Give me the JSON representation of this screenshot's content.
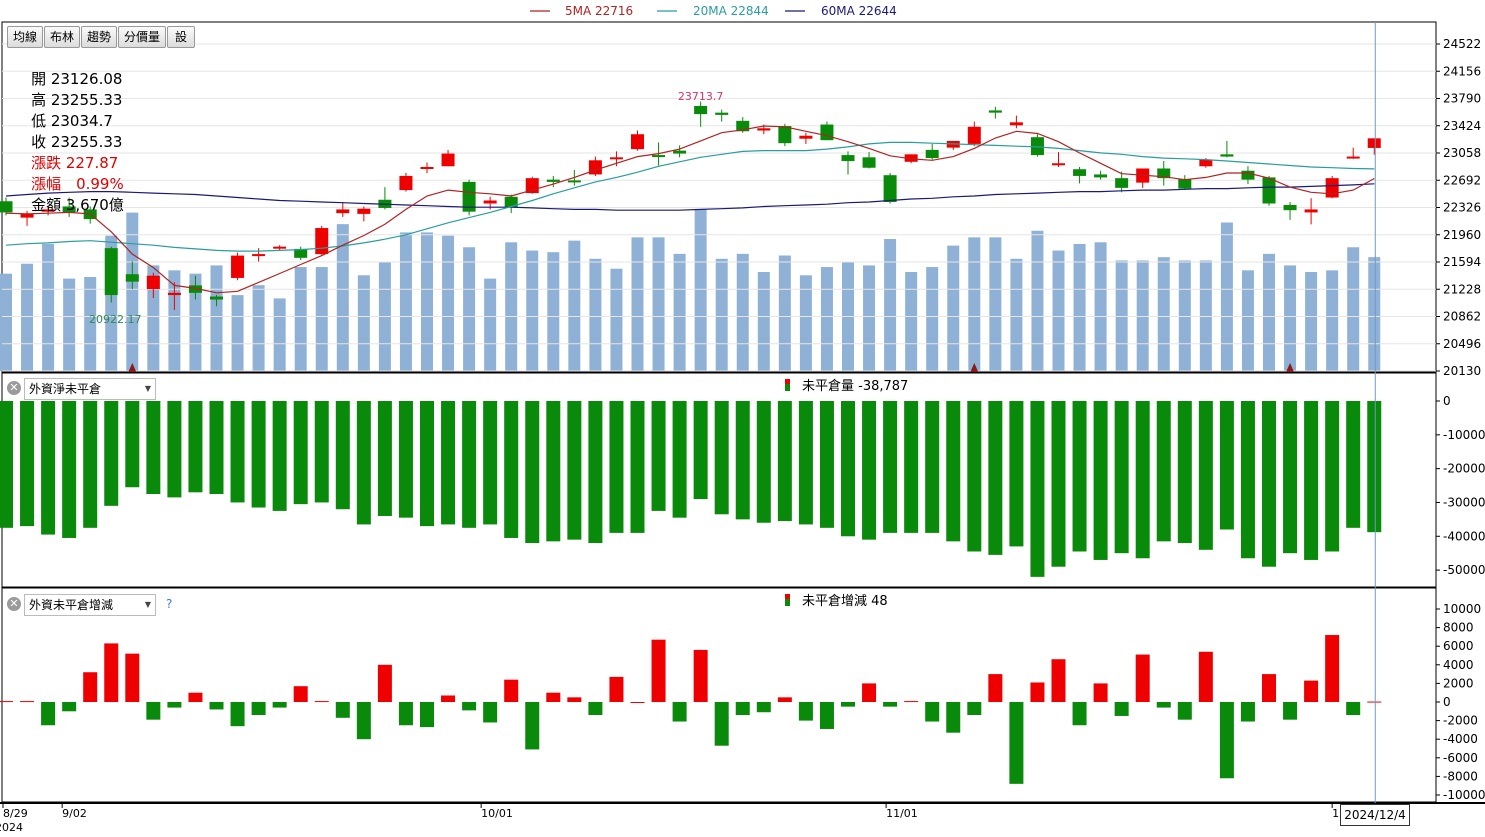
{
  "legend": {
    "ma5": "5MA 22716",
    "ma20": "20MA 22844",
    "ma60": "60MA 22644"
  },
  "tabs": [
    "均線",
    "布林",
    "趨勢",
    "分價量",
    "設"
  ],
  "info": {
    "open": "開 23126.08",
    "high": "高 23255.33",
    "low": "低 23034.7",
    "close": "收 23255.33",
    "change": "漲跌 227.87",
    "pct": "漲幅　0.99%",
    "amount": "金額 3,670億"
  },
  "annotations": {
    "high_label": "23713.7",
    "low_label": "20922.17"
  },
  "panel2": {
    "select": "外資淨未平倉",
    "legend": "未平倉量 -38,787"
  },
  "panel3": {
    "select": "外資未平倉增減",
    "legend": "未平倉增減 48",
    "help": "?"
  },
  "xaxis": {
    "labels": [
      "8/29",
      "9/02",
      "10/01",
      "11/01",
      "12/"
    ],
    "year": "2024",
    "cursor_date": "2024/12/4"
  },
  "colors": {
    "up": "#ee0000",
    "down": "#0a8a0a",
    "volume": "#8fb1d6",
    "ma5": "#b22222",
    "ma20": "#2a9d9d",
    "ma60": "#1a1a7a",
    "cursor": "#6a9ac8"
  },
  "chart_data": [
    {
      "type": "candlestick",
      "price_ticks": [
        24522,
        24156,
        23790,
        23424,
        23058,
        22692,
        22326,
        21960,
        21594,
        21228,
        20862,
        20496,
        20130
      ],
      "ylim": [
        20130,
        24522
      ],
      "ohlc": [
        [
          22410,
          22460,
          22220,
          22260
        ],
        [
          22190,
          22280,
          22080,
          22240
        ],
        [
          22270,
          22330,
          22220,
          22300
        ],
        [
          22340,
          22460,
          22200,
          22260
        ],
        [
          22300,
          22340,
          22110,
          22170
        ],
        [
          21780,
          21800,
          21050,
          21150
        ],
        [
          21430,
          21600,
          21230,
          21330
        ],
        [
          21230,
          21450,
          21110,
          21410
        ],
        [
          21150,
          21320,
          20950,
          21180
        ],
        [
          21280,
          21410,
          21090,
          21180
        ],
        [
          21130,
          21150,
          21000,
          21090
        ],
        [
          21380,
          21720,
          21350,
          21680
        ],
        [
          21700,
          21780,
          21600,
          21700
        ],
        [
          21790,
          21820,
          21750,
          21800
        ],
        [
          21770,
          21800,
          21620,
          21650
        ],
        [
          21700,
          22080,
          21690,
          22050
        ],
        [
          22250,
          22400,
          22200,
          22300
        ],
        [
          22240,
          22340,
          22140,
          22310
        ],
        [
          22430,
          22600,
          22300,
          22320
        ],
        [
          22560,
          22790,
          22540,
          22750
        ],
        [
          22860,
          22930,
          22790,
          22870
        ],
        [
          22880,
          23100,
          22880,
          23050
        ],
        [
          22670,
          22700,
          22220,
          22270
        ],
        [
          22380,
          22470,
          22300,
          22420
        ],
        [
          22470,
          22500,
          22250,
          22330
        ],
        [
          22520,
          22740,
          22510,
          22720
        ],
        [
          22700,
          22750,
          22600,
          22670
        ],
        [
          22690,
          22830,
          22620,
          22680
        ],
        [
          22770,
          23010,
          22750,
          22960
        ],
        [
          22990,
          23080,
          22880,
          23000
        ],
        [
          23110,
          23360,
          23090,
          23310
        ],
        [
          23030,
          23200,
          22890,
          23020
        ],
        [
          23090,
          23160,
          23000,
          23050
        ],
        [
          23690,
          23750,
          23410,
          23580
        ],
        [
          23600,
          23640,
          23480,
          23570
        ],
        [
          23490,
          23540,
          23330,
          23350
        ],
        [
          23360,
          23440,
          23310,
          23390
        ],
        [
          23420,
          23450,
          23150,
          23190
        ],
        [
          23250,
          23330,
          23180,
          23290
        ],
        [
          23440,
          23480,
          23230,
          23230
        ],
        [
          23030,
          23080,
          22770,
          22950
        ],
        [
          23000,
          23070,
          22850,
          22860
        ],
        [
          22760,
          22790,
          22380,
          22400
        ],
        [
          22940,
          23040,
          22920,
          23040
        ],
        [
          23100,
          23180,
          22970,
          22990
        ],
        [
          23130,
          23220,
          23100,
          23220
        ],
        [
          23180,
          23480,
          23150,
          23410
        ],
        [
          23630,
          23680,
          23520,
          23600
        ],
        [
          23430,
          23560,
          23390,
          23470
        ],
        [
          23270,
          23310,
          23010,
          23030
        ],
        [
          22900,
          23070,
          22870,
          22920
        ],
        [
          22840,
          22870,
          22650,
          22750
        ],
        [
          22770,
          22820,
          22700,
          22730
        ],
        [
          22720,
          22810,
          22530,
          22590
        ],
        [
          22660,
          22850,
          22590,
          22850
        ],
        [
          22850,
          22950,
          22620,
          22720
        ],
        [
          22710,
          22760,
          22560,
          22580
        ],
        [
          22880,
          22990,
          22860,
          22970
        ],
        [
          23040,
          23220,
          23000,
          23010
        ],
        [
          22820,
          22880,
          22640,
          22700
        ],
        [
          22730,
          22750,
          22350,
          22380
        ],
        [
          22360,
          22400,
          22160,
          22290
        ],
        [
          22260,
          22450,
          22100,
          22300
        ],
        [
          22460,
          22750,
          22450,
          22720
        ],
        [
          22990,
          23130,
          22980,
          23010
        ],
        [
          23126,
          23255,
          23035,
          23255
        ]
      ],
      "ma5": [
        22250,
        22240,
        22250,
        22260,
        22240,
        22000,
        21700,
        21520,
        21280,
        21240,
        21180,
        21200,
        21320,
        21440,
        21560,
        21680,
        21820,
        21950,
        22100,
        22300,
        22480,
        22560,
        22530,
        22510,
        22480,
        22560,
        22640,
        22730,
        22830,
        22920,
        23010,
        23050,
        23110,
        23220,
        23330,
        23370,
        23420,
        23410,
        23350,
        23290,
        23210,
        23120,
        23020,
        22980,
        22960,
        23010,
        23120,
        23260,
        23350,
        23320,
        23210,
        23060,
        22920,
        22780,
        22760,
        22740,
        22700,
        22730,
        22790,
        22790,
        22720,
        22600,
        22530,
        22510,
        22560,
        22716
      ],
      "ma20": [
        21820,
        21840,
        21850,
        21870,
        21880,
        21860,
        21840,
        21820,
        21790,
        21770,
        21750,
        21740,
        21740,
        21750,
        21760,
        21780,
        21810,
        21850,
        21900,
        21960,
        22040,
        22120,
        22190,
        22260,
        22340,
        22420,
        22510,
        22590,
        22670,
        22730,
        22800,
        22880,
        22940,
        23000,
        23040,
        23080,
        23090,
        23090,
        23090,
        23110,
        23140,
        23180,
        23200,
        23200,
        23190,
        23180,
        23170,
        23160,
        23150,
        23140,
        23120,
        23090,
        23060,
        23040,
        23010,
        22990,
        22980,
        22970,
        22950,
        22930,
        22910,
        22890,
        22870,
        22860,
        22850,
        22844
      ],
      "ma60": [
        22480,
        22500,
        22520,
        22530,
        22540,
        22540,
        22530,
        22520,
        22510,
        22500,
        22480,
        22460,
        22440,
        22420,
        22410,
        22400,
        22390,
        22380,
        22370,
        22360,
        22350,
        22340,
        22330,
        22330,
        22330,
        22320,
        22310,
        22300,
        22300,
        22290,
        22290,
        22290,
        22290,
        22300,
        22310,
        22320,
        22340,
        22350,
        22360,
        22370,
        22390,
        22400,
        22420,
        22440,
        22450,
        22470,
        22480,
        22500,
        22510,
        22520,
        22530,
        22540,
        22540,
        22550,
        22560,
        22560,
        22570,
        22580,
        22580,
        22590,
        22600,
        22600,
        22610,
        22620,
        22630,
        22644
      ],
      "volume_relative": [
        0.59,
        0.65,
        0.77,
        0.56,
        0.57,
        0.82,
        0.96,
        0.64,
        0.61,
        0.59,
        0.64,
        0.46,
        0.52,
        0.44,
        0.63,
        0.63,
        0.89,
        0.58,
        0.66,
        0.84,
        0.84,
        0.82,
        0.75,
        0.56,
        0.78,
        0.73,
        0.72,
        0.79,
        0.68,
        0.62,
        0.81,
        0.81,
        0.71,
        0.98,
        0.68,
        0.71,
        0.6,
        0.7,
        0.58,
        0.63,
        0.66,
        0.64,
        0.8,
        0.6,
        0.63,
        0.76,
        0.81,
        0.81,
        0.68,
        0.85,
        0.73,
        0.77,
        0.78,
        0.67,
        0.67,
        0.69,
        0.67,
        0.67,
        0.9,
        0.61,
        0.71,
        0.64,
        0.6,
        0.61,
        0.75,
        0.69
      ]
    },
    {
      "type": "bar",
      "name": "未平倉量",
      "y_ticks": [
        0,
        -10000,
        -20000,
        -30000,
        -40000,
        -50000
      ],
      "ylim": [
        -55000,
        0
      ],
      "values": [
        -37500,
        -37000,
        -39500,
        -40500,
        -37500,
        -31000,
        -25500,
        -27500,
        -28500,
        -27000,
        -27500,
        -30000,
        -31500,
        -32500,
        -30500,
        -30000,
        -32000,
        -36500,
        -34000,
        -34500,
        -37000,
        -36500,
        -37500,
        -36500,
        -40500,
        -42000,
        -41500,
        -41000,
        -42000,
        -39000,
        -39000,
        -32500,
        -34500,
        -29000,
        -33500,
        -35000,
        -36000,
        -35500,
        -36500,
        -37500,
        -40000,
        -41000,
        -39000,
        -39000,
        -39000,
        -41500,
        -44500,
        -45500,
        -43000,
        -52000,
        -49000,
        -44500,
        -47000,
        -45000,
        -46500,
        -41500,
        -42000,
        -44000,
        -38000,
        -46500,
        -49000,
        -45000,
        -47000,
        -44500,
        -37500,
        -38787
      ]
    },
    {
      "type": "bar",
      "name": "未平倉增減",
      "y_ticks": [
        10000,
        8000,
        6000,
        4000,
        2000,
        0,
        -2000,
        -4000,
        -6000,
        -8000,
        -10000
      ],
      "ylim": [
        -10000,
        10000
      ],
      "values": [
        100,
        100,
        -2500,
        -1000,
        3200,
        6300,
        5200,
        -1900,
        -600,
        1000,
        -800,
        -2600,
        -1400,
        -600,
        1700,
        100,
        -1700,
        -4000,
        4000,
        -2500,
        -2700,
        700,
        -900,
        -2200,
        2400,
        -5100,
        1000,
        500,
        -1400,
        2700,
        0,
        6700,
        -2100,
        5600,
        -4700,
        -1400,
        -1100,
        500,
        -2000,
        -2900,
        -500,
        2000,
        -500,
        100,
        -2100,
        -3300,
        -1400,
        3000,
        -8800,
        2100,
        4600,
        -2500,
        2000,
        -1500,
        5100,
        -600,
        -1900,
        5400,
        -8200,
        -2100,
        3000,
        -1900,
        2300,
        7200,
        -1400,
        48
      ]
    }
  ]
}
